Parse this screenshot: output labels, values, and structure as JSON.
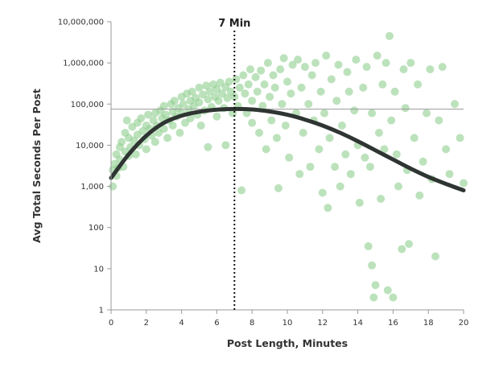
{
  "chart_data": {
    "type": "scatter",
    "title": "",
    "xlabel": "Post Length, Minutes",
    "ylabel": "Avg Total Seconds Per Post",
    "x_ticks": [
      0,
      2,
      4,
      6,
      8,
      10,
      12,
      14,
      16,
      18,
      20
    ],
    "y_ticks": [
      {
        "value": 1,
        "label": "1"
      },
      {
        "value": 10,
        "label": "10"
      },
      {
        "value": 100,
        "label": "100"
      },
      {
        "value": 1000,
        "label": "1,000"
      },
      {
        "value": 10000,
        "label": "10,000"
      },
      {
        "value": 100000,
        "label": "100,000"
      },
      {
        "value": 1000000,
        "label": "1,000,000"
      },
      {
        "value": 10000000,
        "label": "10,000,000"
      }
    ],
    "xlim": [
      0,
      20
    ],
    "ylim": [
      1,
      10000000
    ],
    "y_scale": "log",
    "grid": false,
    "reference_line": {
      "x": 7,
      "label": "7 Min",
      "style": "dotted"
    },
    "horizontal_reference": {
      "y": 75000
    },
    "colors": {
      "points": "#8fcf8f",
      "curve": "#2f3532",
      "axis": "#9a9a9a",
      "reference": "#111111"
    },
    "series": [
      {
        "type": "scatter",
        "points": [
          [
            0.1,
            1000
          ],
          [
            0.1,
            2500
          ],
          [
            0.2,
            3500
          ],
          [
            0.3,
            1800
          ],
          [
            0.3,
            6000
          ],
          [
            0.4,
            2800
          ],
          [
            0.5,
            9000
          ],
          [
            0.5,
            4500
          ],
          [
            0.6,
            12000
          ],
          [
            0.7,
            3000
          ],
          [
            0.8,
            20000
          ],
          [
            0.8,
            7000
          ],
          [
            0.9,
            40000
          ],
          [
            1.0,
            5500
          ],
          [
            1.0,
            15000
          ],
          [
            1.1,
            9000
          ],
          [
            1.2,
            28000
          ],
          [
            1.3,
            13000
          ],
          [
            1.4,
            6000
          ],
          [
            1.5,
            35000
          ],
          [
            1.5,
            18000
          ],
          [
            1.6,
            10000
          ],
          [
            1.7,
            45000
          ],
          [
            1.8,
            22000
          ],
          [
            1.9,
            14000
          ],
          [
            2.0,
            30000
          ],
          [
            2.0,
            8000
          ],
          [
            2.1,
            55000
          ],
          [
            2.2,
            25000
          ],
          [
            2.3,
            17000
          ],
          [
            2.4,
            40000
          ],
          [
            2.5,
            60000
          ],
          [
            2.5,
            12000
          ],
          [
            2.6,
            30000
          ],
          [
            2.7,
            20000
          ],
          [
            2.8,
            70000
          ],
          [
            2.9,
            45000
          ],
          [
            3.0,
            25000
          ],
          [
            3.0,
            90000
          ],
          [
            3.1,
            55000
          ],
          [
            3.2,
            15000
          ],
          [
            3.3,
            40000
          ],
          [
            3.4,
            100000
          ],
          [
            3.5,
            65000
          ],
          [
            3.5,
            30000
          ],
          [
            3.6,
            120000
          ],
          [
            3.7,
            50000
          ],
          [
            3.8,
            80000
          ],
          [
            3.9,
            20000
          ],
          [
            4.0,
            150000
          ],
          [
            4.0,
            60000
          ],
          [
            4.1,
            100000
          ],
          [
            4.2,
            35000
          ],
          [
            4.3,
            180000
          ],
          [
            4.4,
            75000
          ],
          [
            4.5,
            120000
          ],
          [
            4.5,
            45000
          ],
          [
            4.6,
            200000
          ],
          [
            4.7,
            90000
          ],
          [
            4.8,
            140000
          ],
          [
            4.9,
            55000
          ],
          [
            5.0,
            250000
          ],
          [
            5.0,
            110000
          ],
          [
            5.1,
            30000
          ],
          [
            5.2,
            170000
          ],
          [
            5.3,
            70000
          ],
          [
            5.4,
            280000
          ],
          [
            5.5,
            130000
          ],
          [
            5.5,
            9000
          ],
          [
            5.6,
            200000
          ],
          [
            5.7,
            85000
          ],
          [
            5.8,
            300000
          ],
          [
            5.9,
            150000
          ],
          [
            6.0,
            50000
          ],
          [
            6.0,
            230000
          ],
          [
            6.1,
            120000
          ],
          [
            6.2,
            330000
          ],
          [
            6.3,
            180000
          ],
          [
            6.4,
            80000
          ],
          [
            6.5,
            260000
          ],
          [
            6.5,
            10000
          ],
          [
            6.6,
            140000
          ],
          [
            6.7,
            350000
          ],
          [
            6.8,
            200000
          ],
          [
            6.9,
            60000
          ],
          [
            7.0,
            150000
          ],
          [
            7.1,
            400000
          ],
          [
            7.2,
            90000
          ],
          [
            7.3,
            250000
          ],
          [
            7.4,
            800
          ],
          [
            7.5,
            500000
          ],
          [
            7.6,
            180000
          ],
          [
            7.7,
            60000
          ],
          [
            7.8,
            300000
          ],
          [
            7.9,
            700000
          ],
          [
            8.0,
            120000
          ],
          [
            8.0,
            35000
          ],
          [
            8.2,
            450000
          ],
          [
            8.3,
            200000
          ],
          [
            8.4,
            20000
          ],
          [
            8.5,
            650000
          ],
          [
            8.6,
            90000
          ],
          [
            8.7,
            300000
          ],
          [
            8.8,
            8000
          ],
          [
            8.9,
            1000000
          ],
          [
            9.0,
            150000
          ],
          [
            9.1,
            40000
          ],
          [
            9.2,
            500000
          ],
          [
            9.3,
            250000
          ],
          [
            9.4,
            15000
          ],
          [
            9.5,
            900
          ],
          [
            9.6,
            700000
          ],
          [
            9.7,
            100000
          ],
          [
            9.8,
            1300000
          ],
          [
            9.9,
            30000
          ],
          [
            10.0,
            350000
          ],
          [
            10.1,
            5000
          ],
          [
            10.2,
            180000
          ],
          [
            10.3,
            900000
          ],
          [
            10.5,
            60000
          ],
          [
            10.6,
            1200000
          ],
          [
            10.7,
            2000
          ],
          [
            10.8,
            250000
          ],
          [
            10.9,
            20000
          ],
          [
            11.0,
            800000
          ],
          [
            11.2,
            100000
          ],
          [
            11.3,
            3000
          ],
          [
            11.4,
            500000
          ],
          [
            11.5,
            40000
          ],
          [
            11.6,
            1000000
          ],
          [
            11.8,
            8000
          ],
          [
            11.9,
            200000
          ],
          [
            12.0,
            700
          ],
          [
            12.1,
            60000
          ],
          [
            12.2,
            1500000
          ],
          [
            12.3,
            300
          ],
          [
            12.4,
            15000
          ],
          [
            12.5,
            400000
          ],
          [
            12.7,
            3000
          ],
          [
            12.8,
            120000
          ],
          [
            12.9,
            900000
          ],
          [
            13.0,
            1000
          ],
          [
            13.1,
            30000
          ],
          [
            13.3,
            6000
          ],
          [
            13.4,
            600000
          ],
          [
            13.5,
            200000
          ],
          [
            13.6,
            2000
          ],
          [
            13.8,
            70000
          ],
          [
            13.9,
            1200000
          ],
          [
            14.0,
            10000
          ],
          [
            14.1,
            400
          ],
          [
            14.3,
            250000
          ],
          [
            14.4,
            5000
          ],
          [
            14.5,
            800000
          ],
          [
            14.6,
            35
          ],
          [
            14.7,
            3000
          ],
          [
            14.8,
            12
          ],
          [
            14.8,
            60000
          ],
          [
            14.9,
            2
          ],
          [
            15.0,
            4
          ],
          [
            15.1,
            1500000
          ],
          [
            15.2,
            20000
          ],
          [
            15.3,
            500
          ],
          [
            15.4,
            300000
          ],
          [
            15.5,
            8000
          ],
          [
            15.6,
            1000000
          ],
          [
            15.7,
            3
          ],
          [
            15.8,
            4500000
          ],
          [
            15.9,
            40000
          ],
          [
            16.0,
            2
          ],
          [
            16.1,
            200000
          ],
          [
            16.2,
            6000
          ],
          [
            16.3,
            1000
          ],
          [
            16.5,
            30
          ],
          [
            16.6,
            700000
          ],
          [
            16.7,
            80000
          ],
          [
            16.8,
            2500
          ],
          [
            16.9,
            40
          ],
          [
            17.0,
            1000000
          ],
          [
            17.2,
            15000
          ],
          [
            17.4,
            300000
          ],
          [
            17.5,
            600
          ],
          [
            17.7,
            4000
          ],
          [
            17.9,
            60000
          ],
          [
            18.1,
            700000
          ],
          [
            18.2,
            1500
          ],
          [
            18.4,
            20
          ],
          [
            18.6,
            40000
          ],
          [
            18.8,
            800000
          ],
          [
            19.0,
            8000
          ],
          [
            19.2,
            2000
          ],
          [
            19.5,
            100000
          ],
          [
            19.8,
            15000
          ],
          [
            20.0,
            1200
          ]
        ]
      },
      {
        "type": "line",
        "name": "",
        "points": [
          [
            0,
            1600
          ],
          [
            1,
            6000
          ],
          [
            2,
            17000
          ],
          [
            3,
            35000
          ],
          [
            4,
            52000
          ],
          [
            5,
            65000
          ],
          [
            6,
            73000
          ],
          [
            7,
            76000
          ],
          [
            8,
            74000
          ],
          [
            9,
            66000
          ],
          [
            10,
            55000
          ],
          [
            11,
            42000
          ],
          [
            12,
            30000
          ],
          [
            13,
            20000
          ],
          [
            14,
            12500
          ],
          [
            15,
            7500
          ],
          [
            16,
            4500
          ],
          [
            17,
            2700
          ],
          [
            18,
            1700
          ],
          [
            19,
            1150
          ],
          [
            20,
            800
          ]
        ]
      }
    ]
  }
}
